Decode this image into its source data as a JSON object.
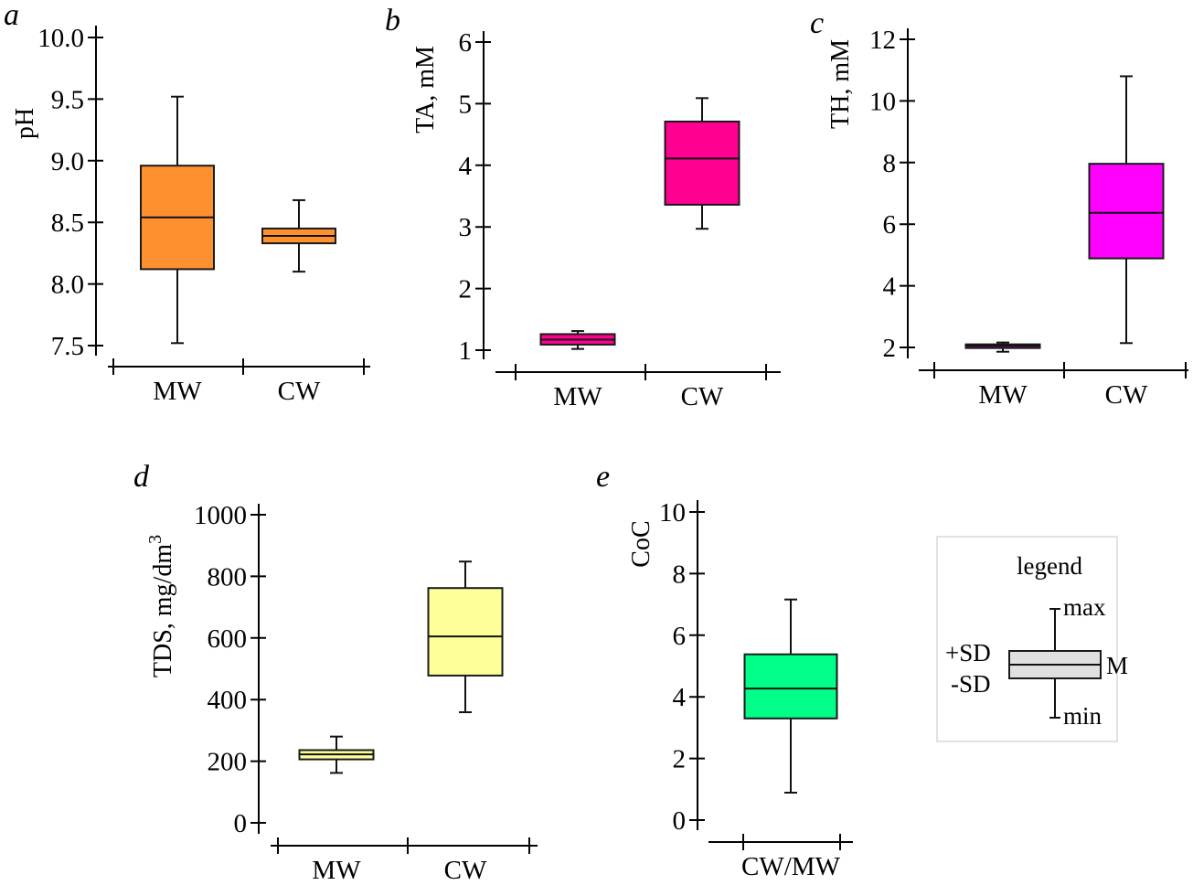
{
  "chart_data": [
    {
      "type": "box",
      "panel": "a",
      "title": "",
      "ylabel": "pH",
      "xlabel": "",
      "ylim": [
        7.5,
        10.0
      ],
      "yticks": [
        "10.0",
        "9.5",
        "9.0",
        "8.5",
        "8.0",
        "7.5"
      ],
      "ytick_values": [
        10.0,
        9.5,
        9.0,
        8.5,
        8.0,
        7.5
      ],
      "categories": [
        "MW",
        "CW"
      ],
      "color": "#FF9030",
      "series": [
        {
          "name": "MW",
          "min": 7.52,
          "minus_sd": 8.12,
          "mean": 8.54,
          "plus_sd": 8.96,
          "max": 9.52
        },
        {
          "name": "CW",
          "min": 8.1,
          "minus_sd": 8.33,
          "mean": 8.39,
          "plus_sd": 8.45,
          "max": 8.68
        }
      ]
    },
    {
      "type": "box",
      "panel": "b",
      "title": "",
      "ylabel": "TA, mM",
      "xlabel": "",
      "ylim": [
        1,
        6
      ],
      "yticks": [
        "6",
        "5",
        "4",
        "3",
        "2",
        "1"
      ],
      "ytick_values": [
        6,
        5,
        4,
        3,
        2,
        1
      ],
      "categories": [
        "MW",
        "CW"
      ],
      "color": "#FF0090",
      "series": [
        {
          "name": "MW",
          "min": 1.02,
          "minus_sd": 1.09,
          "mean": 1.17,
          "plus_sd": 1.26,
          "max": 1.31
        },
        {
          "name": "CW",
          "min": 2.97,
          "minus_sd": 3.36,
          "mean": 4.11,
          "plus_sd": 4.71,
          "max": 5.09
        }
      ]
    },
    {
      "type": "box",
      "panel": "c",
      "title": "",
      "ylabel": "TH, mM",
      "xlabel": "",
      "ylim": [
        2,
        12
      ],
      "yticks": [
        "12",
        "10",
        "8",
        "6",
        "4",
        "2"
      ],
      "ytick_values": [
        12,
        10,
        8,
        6,
        4,
        2
      ],
      "categories": [
        "MW",
        "CW"
      ],
      "color": "#FF00FF",
      "series": [
        {
          "name": "MW",
          "min": 1.86,
          "minus_sd": 1.98,
          "mean": 2.05,
          "plus_sd": 2.1,
          "max": 2.16
        },
        {
          "name": "CW",
          "min": 2.14,
          "minus_sd": 4.89,
          "mean": 6.37,
          "plus_sd": 7.96,
          "max": 10.8
        }
      ]
    },
    {
      "type": "box",
      "panel": "d",
      "title": "",
      "ylabel": "TDS, mg/dm",
      "ylabel_sup": "3",
      "xlabel": "",
      "ylim": [
        0,
        1000
      ],
      "yticks": [
        "1000",
        "800",
        "600",
        "400",
        "200",
        "0"
      ],
      "ytick_values": [
        1000,
        800,
        600,
        400,
        200,
        0
      ],
      "categories": [
        "MW",
        "CW"
      ],
      "color": "#FFFF99",
      "series": [
        {
          "name": "MW",
          "min": 162,
          "minus_sd": 206,
          "mean": 222,
          "plus_sd": 236,
          "max": 280
        },
        {
          "name": "CW",
          "min": 359,
          "minus_sd": 478,
          "mean": 605,
          "plus_sd": 762,
          "max": 848
        }
      ]
    },
    {
      "type": "box",
      "panel": "e",
      "title": "",
      "ylabel": "CoC",
      "xlabel": "",
      "ylim": [
        0,
        10
      ],
      "yticks": [
        "10",
        "8",
        "6",
        "4",
        "2",
        "0"
      ],
      "ytick_values": [
        10,
        8,
        6,
        4,
        2,
        0
      ],
      "categories": [
        "CW/MW"
      ],
      "color": "#00FF88",
      "series": [
        {
          "name": "CW/MW",
          "min": 0.89,
          "minus_sd": 3.3,
          "mean": 4.27,
          "plus_sd": 5.38,
          "max": 7.16
        }
      ]
    }
  ],
  "legend": {
    "title": "legend",
    "max_label": "max",
    "min_label": "min",
    "plus_sd_label": "+SD",
    "minus_sd_label": "-SD",
    "mean_label": "M",
    "fill_color": "#E0E0E0",
    "placement": "bottom-right"
  }
}
